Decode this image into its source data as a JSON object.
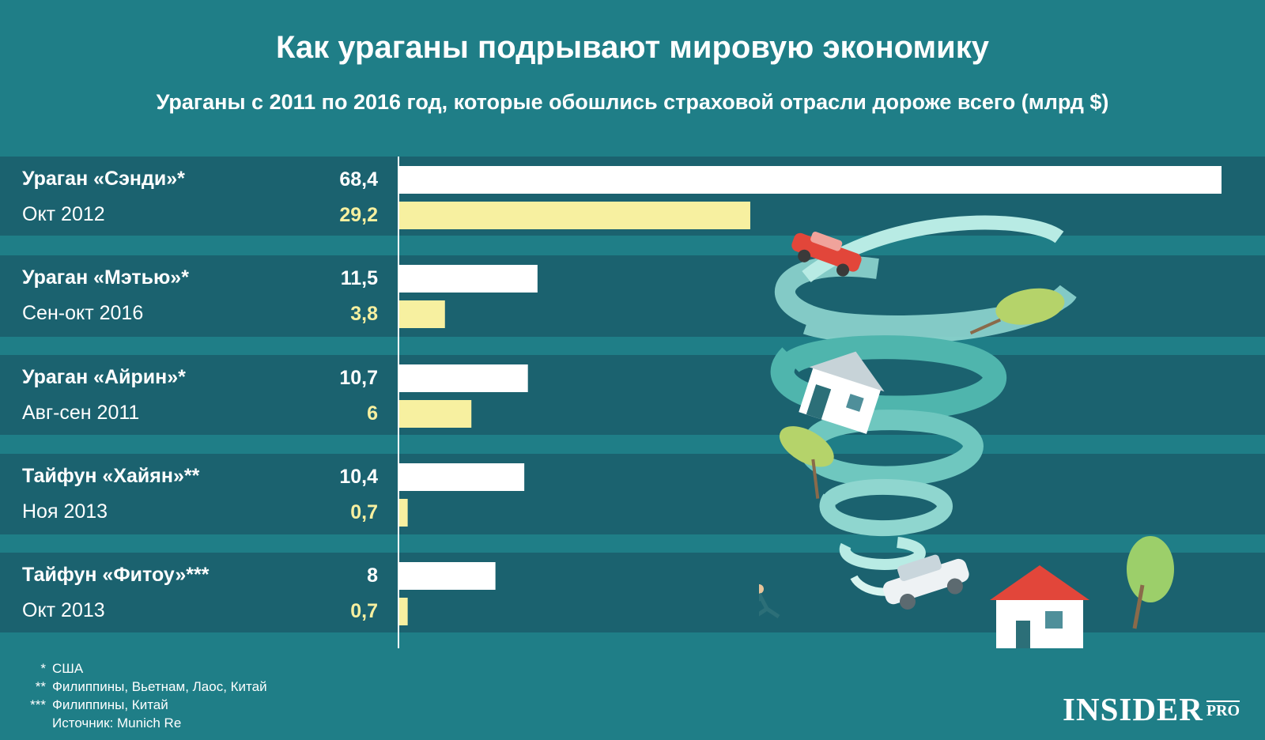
{
  "title": "Как ураганы подрывают мировую экономику",
  "subtitle": "Ураганы с 2011 по 2016 год, которые обошлись страховой отрасли дороже всего (млрд $)",
  "colors": {
    "background": "#1f7e87",
    "band": "#1b626f",
    "total_bar": "#ffffff",
    "insured_bar": "#f7f0a0"
  },
  "chart_data": {
    "type": "bar",
    "orientation": "horizontal",
    "categories": [
      "Ураган «Сэнди»*",
      "Ураган «Мэтью»*",
      "Ураган «Айрин»*",
      "Тайфун «Хайян»**",
      "Тайфун «Фитоу»***"
    ],
    "dates": [
      "Окт 2012",
      "Сен-окт 2016",
      "Авг-сен 2011",
      "Ноя 2013",
      "Окт 2013"
    ],
    "series": [
      {
        "values": [
          68.4,
          11.5,
          10.7,
          10.4,
          8
        ],
        "labels": [
          "68,4",
          "11,5",
          "10,7",
          "10,4",
          "8"
        ]
      },
      {
        "values": [
          29.2,
          3.8,
          6,
          0.7,
          0.7
        ],
        "labels": [
          "29,2",
          "3,8",
          "6",
          "0,7",
          "0,7"
        ]
      }
    ],
    "xlim": [
      0,
      68.4
    ],
    "grid": false,
    "legend": "none"
  },
  "footnotes": [
    {
      "mark": "*",
      "text": "США"
    },
    {
      "mark": "**",
      "text": "Филиппины, Вьетнам, Лаос, Китай"
    },
    {
      "mark": "***",
      "text": "Филиппины, Китай"
    }
  ],
  "source": "Источник: Munich Re",
  "logo": {
    "main": "INSIDER",
    "suffix": "PRO"
  },
  "illustration_icons": [
    "tornado-icon",
    "red-car-icon",
    "white-car-icon",
    "flying-house-icon",
    "house-icon",
    "tree-icon",
    "running-person-icon"
  ]
}
